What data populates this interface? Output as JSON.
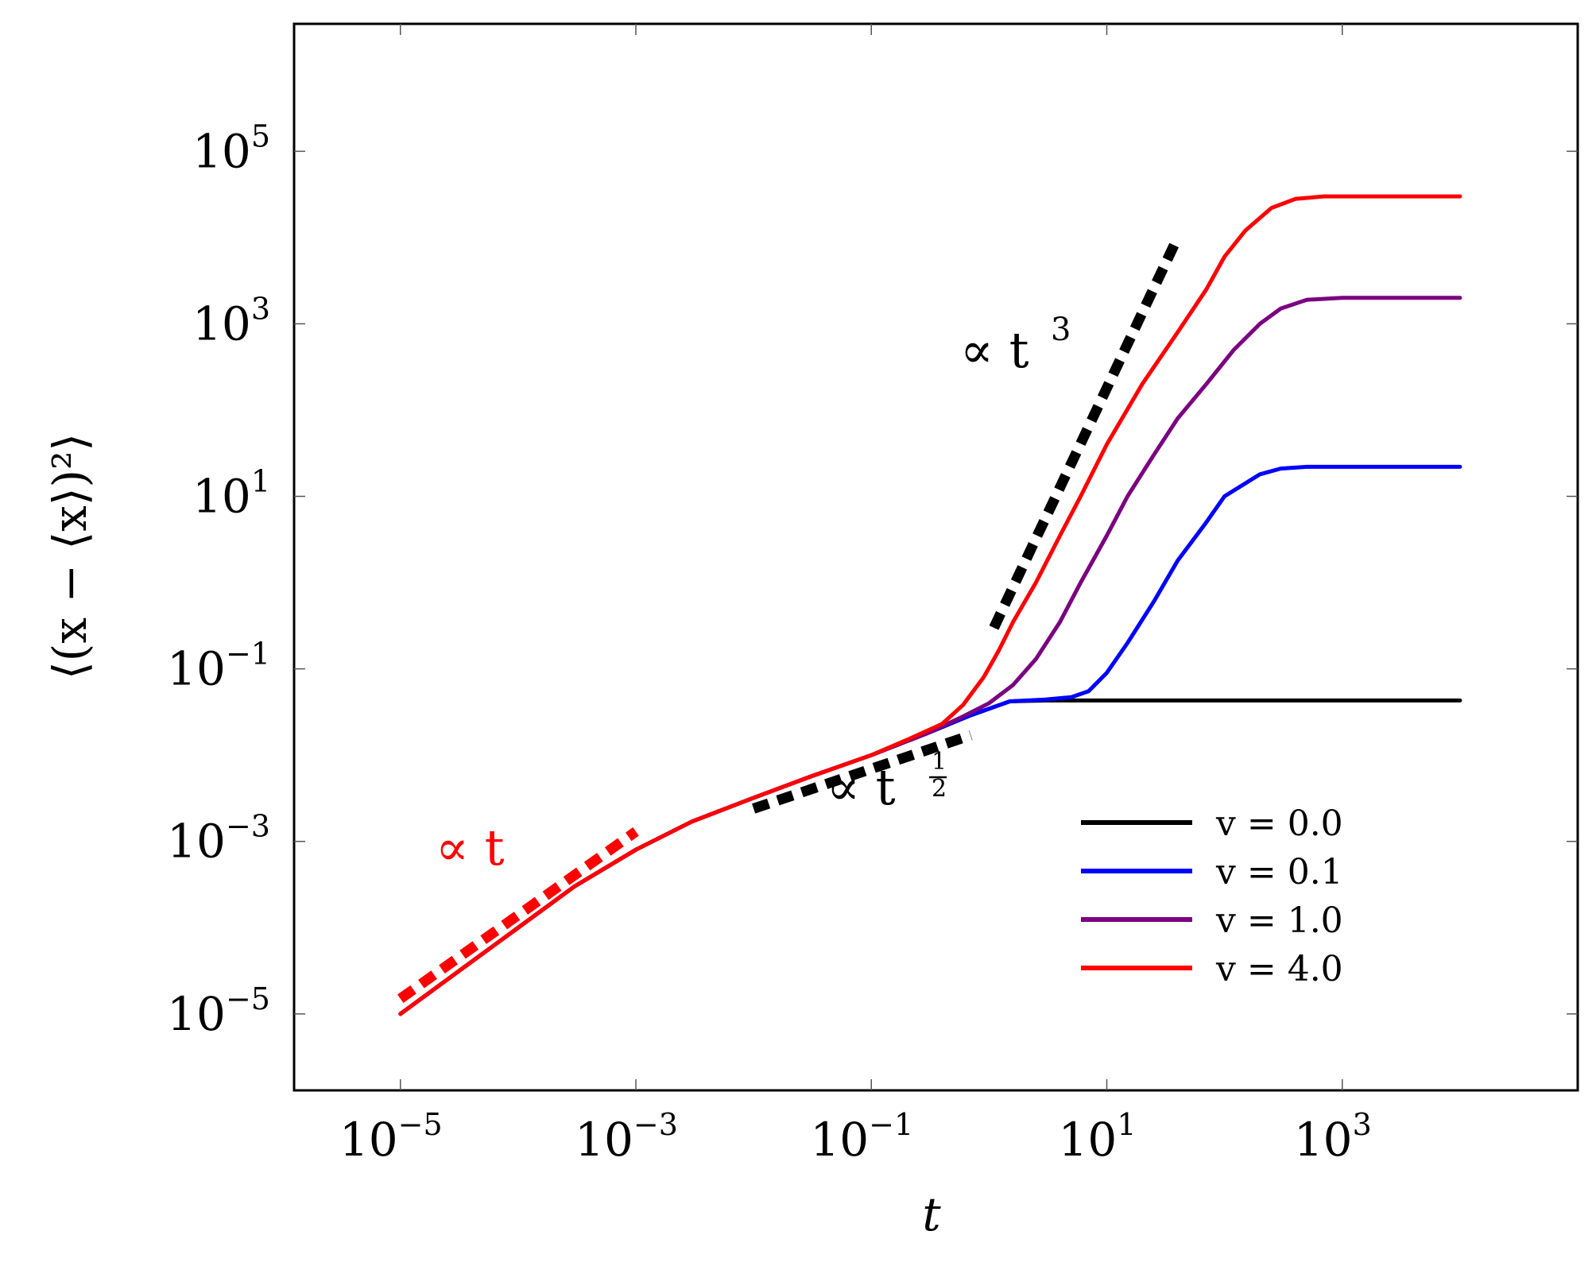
{
  "chart_data": {
    "type": "line",
    "title": "",
    "xlabel": "t",
    "ylabel": "⟨(x − ⟨x⟩)²⟩",
    "xscale": "log",
    "yscale": "log",
    "xlim": [
      1.25e-06,
      100000.0
    ],
    "ylim": [
      1.3e-06,
      3000000.0
    ],
    "xticks": [
      {
        "value": 1e-05,
        "base": "10",
        "exp": "−5"
      },
      {
        "value": 0.001,
        "base": "10",
        "exp": "−3"
      },
      {
        "value": 0.1,
        "base": "10",
        "exp": "−1"
      },
      {
        "value": 10.0,
        "base": "10",
        "exp": "1"
      },
      {
        "value": 1000.0,
        "base": "10",
        "exp": "3"
      }
    ],
    "yticks": [
      {
        "value": 1e-05,
        "base": "10",
        "exp": "−5"
      },
      {
        "value": 0.001,
        "base": "10",
        "exp": "−3"
      },
      {
        "value": 0.1,
        "base": "10",
        "exp": "−1"
      },
      {
        "value": 10.0,
        "base": "10",
        "exp": "1"
      },
      {
        "value": 1000.0,
        "base": "10",
        "exp": "3"
      },
      {
        "value": 100000.0,
        "base": "10",
        "exp": "5"
      }
    ],
    "legend_position": "lower-right",
    "series": [
      {
        "name": "v = 0.0",
        "color": "#000000",
        "points": [
          [
            1e-05,
            1e-05
          ],
          [
            3e-05,
            3e-05
          ],
          [
            0.0001,
            0.0001
          ],
          [
            0.0003,
            0.0003
          ],
          [
            0.001,
            0.0008
          ],
          [
            0.003,
            0.0017
          ],
          [
            0.01,
            0.0032
          ],
          [
            0.03,
            0.0056
          ],
          [
            0.1,
            0.01
          ],
          [
            0.3,
            0.018
          ],
          [
            0.7,
            0.029
          ],
          [
            1.5,
            0.042
          ],
          [
            3,
            0.043
          ],
          [
            10,
            0.043
          ],
          [
            100,
            0.043
          ],
          [
            1000,
            0.043
          ],
          [
            10000,
            0.043
          ]
        ]
      },
      {
        "name": "v = 0.1",
        "color": "#0000ff",
        "points": [
          [
            1e-05,
            1e-05
          ],
          [
            3e-05,
            3e-05
          ],
          [
            0.0001,
            0.0001
          ],
          [
            0.0003,
            0.0003
          ],
          [
            0.001,
            0.0008
          ],
          [
            0.003,
            0.0017
          ],
          [
            0.01,
            0.0032
          ],
          [
            0.03,
            0.0056
          ],
          [
            0.1,
            0.01
          ],
          [
            0.3,
            0.018
          ],
          [
            0.7,
            0.029
          ],
          [
            1.5,
            0.042
          ],
          [
            3,
            0.044
          ],
          [
            5,
            0.047
          ],
          [
            7,
            0.055
          ],
          [
            10,
            0.09
          ],
          [
            15,
            0.2
          ],
          [
            25,
            0.6
          ],
          [
            40,
            1.8
          ],
          [
            70,
            5
          ],
          [
            100,
            10
          ],
          [
            200,
            18
          ],
          [
            300,
            21
          ],
          [
            500,
            22
          ],
          [
            1000,
            22
          ],
          [
            10000,
            22
          ]
        ]
      },
      {
        "name": "v = 1.0",
        "color": "#7a0080",
        "points": [
          [
            1e-05,
            1e-05
          ],
          [
            3e-05,
            3e-05
          ],
          [
            0.0001,
            0.0001
          ],
          [
            0.0003,
            0.0003
          ],
          [
            0.001,
            0.0008
          ],
          [
            0.003,
            0.0017
          ],
          [
            0.01,
            0.0032
          ],
          [
            0.03,
            0.0056
          ],
          [
            0.1,
            0.01
          ],
          [
            0.3,
            0.018
          ],
          [
            0.6,
            0.028
          ],
          [
            1,
            0.04
          ],
          [
            1.6,
            0.065
          ],
          [
            2.5,
            0.13
          ],
          [
            4,
            0.35
          ],
          [
            6,
            1
          ],
          [
            10,
            3.5
          ],
          [
            15,
            10
          ],
          [
            25,
            30
          ],
          [
            40,
            80
          ],
          [
            70,
            200
          ],
          [
            120,
            500
          ],
          [
            200,
            1000
          ],
          [
            300,
            1500
          ],
          [
            500,
            1900
          ],
          [
            1000,
            2000
          ],
          [
            10000,
            2000
          ]
        ]
      },
      {
        "name": "v = 4.0",
        "color": "#ff0000",
        "points": [
          [
            1e-05,
            1e-05
          ],
          [
            3e-05,
            3e-05
          ],
          [
            0.0001,
            0.0001
          ],
          [
            0.0003,
            0.0003
          ],
          [
            0.001,
            0.0008
          ],
          [
            0.003,
            0.0017
          ],
          [
            0.01,
            0.0032
          ],
          [
            0.03,
            0.0056
          ],
          [
            0.1,
            0.01
          ],
          [
            0.2,
            0.015
          ],
          [
            0.4,
            0.023
          ],
          [
            0.6,
            0.038
          ],
          [
            0.9,
            0.08
          ],
          [
            1.2,
            0.16
          ],
          [
            1.6,
            0.35
          ],
          [
            2.5,
            1
          ],
          [
            4,
            3.5
          ],
          [
            6,
            10
          ],
          [
            10,
            40
          ],
          [
            20,
            200
          ],
          [
            40,
            800
          ],
          [
            70,
            2500
          ],
          [
            100,
            6000
          ],
          [
            150,
            12000
          ],
          [
            250,
            22000
          ],
          [
            400,
            28000
          ],
          [
            700,
            30000
          ],
          [
            10000,
            30000
          ]
        ]
      }
    ],
    "guides": [
      {
        "label": "∝ t",
        "color": "#ff0000",
        "points": [
          [
            1e-05,
            1.5e-05
          ],
          [
            0.001,
            0.0013
          ]
        ]
      },
      {
        "label": "∝ t^(1/2)",
        "color": "#000000",
        "points": [
          [
            0.01,
            0.0024
          ],
          [
            0.7,
            0.017
          ]
        ]
      },
      {
        "label": "∝ t^3",
        "color": "#000000",
        "points": [
          [
            1.1,
            0.3
          ],
          [
            40,
            10000
          ]
        ]
      }
    ],
    "annotations": [
      {
        "text": "∝ t",
        "color": "#ff0000"
      },
      {
        "text": "∝ t",
        "exp_num": "1",
        "exp_den": "2",
        "color": "#000000"
      },
      {
        "text": "∝ t",
        "exp": "3",
        "color": "#000000"
      }
    ]
  }
}
